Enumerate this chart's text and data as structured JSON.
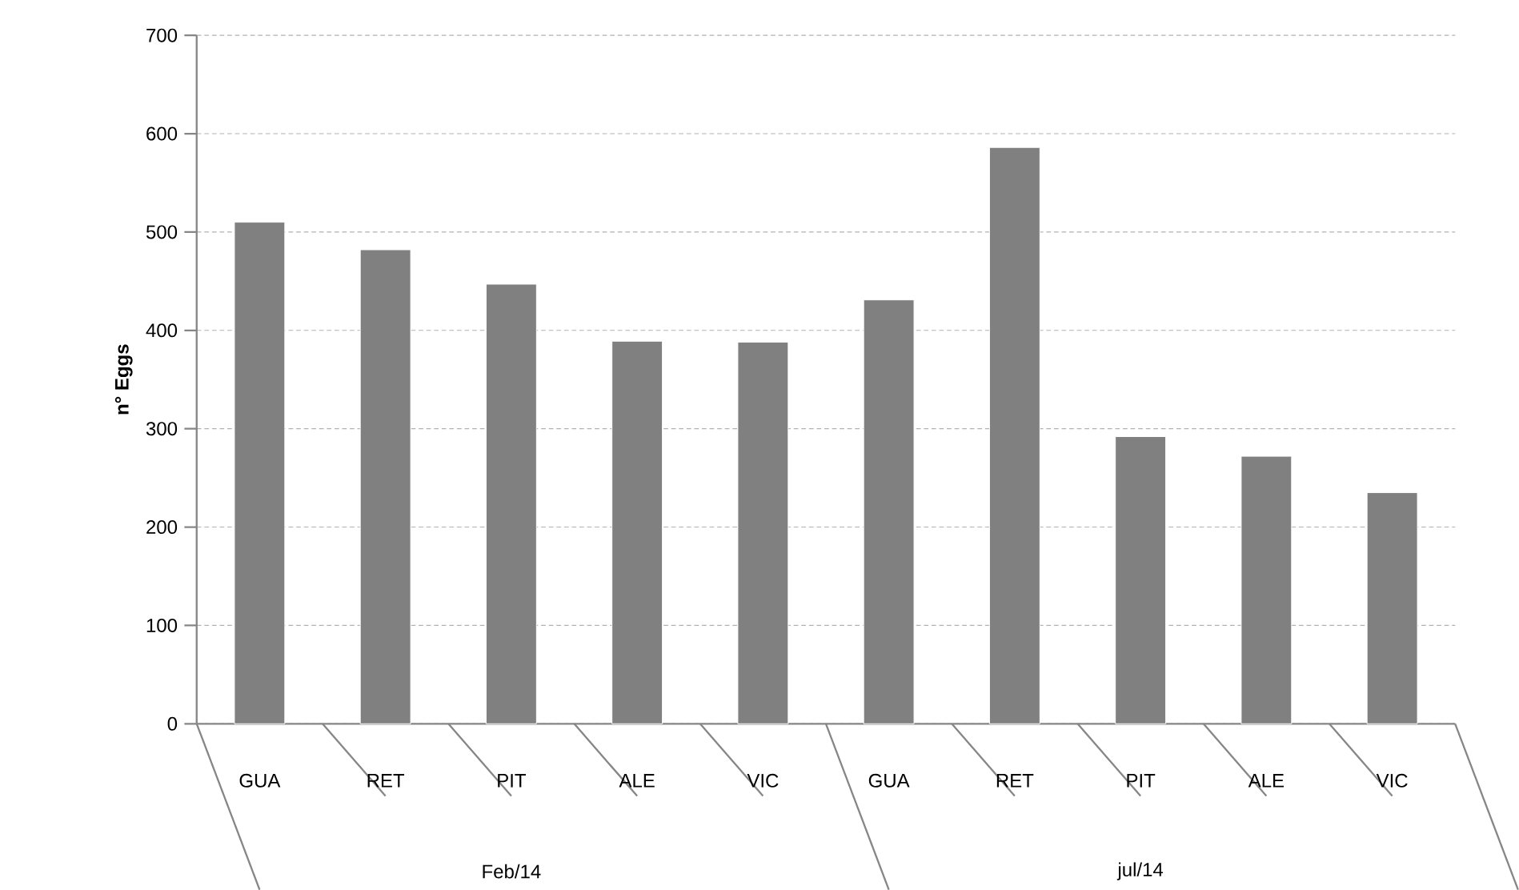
{
  "chart_data": {
    "type": "bar",
    "ylabel": "n° Eggs",
    "categories": [
      "GUA",
      "RET",
      "PIT",
      "ALE",
      "VIC",
      "GUA",
      "RET",
      "PIT",
      "ALE",
      "VIC"
    ],
    "values": [
      510,
      482,
      447,
      389,
      388,
      431,
      586,
      292,
      272,
      235
    ],
    "color": "#808080",
    "ylim": [
      0,
      700
    ],
    "yticks": [
      0,
      100,
      200,
      300,
      400,
      500,
      600,
      700
    ],
    "grid": "y",
    "annotations": [
      "Feb/14",
      "jul/14"
    ]
  }
}
